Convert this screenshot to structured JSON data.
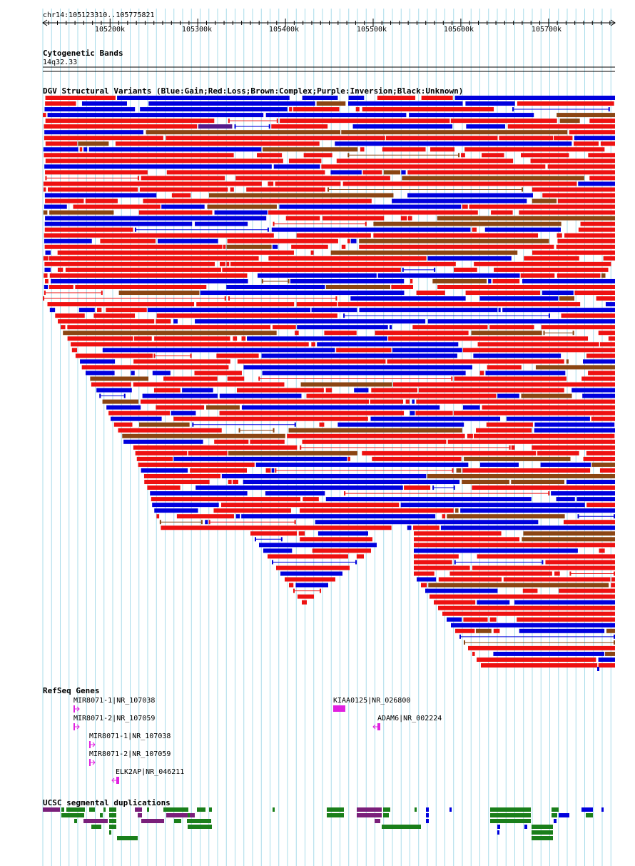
{
  "header": {
    "location": "chr14:105123310..105775821"
  },
  "ruler": {
    "start": 105123310,
    "end": 105775821,
    "ticks": [
      "105200k",
      "105300k",
      "105400k",
      "105500k",
      "105600k",
      "105700k"
    ]
  },
  "cytobands": {
    "title": "Cytogenetic Bands",
    "band": "14q32.33"
  },
  "dgv": {
    "title": "DGV Structural Variants (Blue:Gain;Red:Loss;Brown:Complex;Purple:Inversion;Black:Unknown)",
    "colors": {
      "gain": "#0000dd",
      "loss": "#ee1111",
      "complex": "#8b4513",
      "inversion": "#551a8b",
      "unknown": "#000000"
    }
  },
  "refseq": {
    "title": "RefSeq Genes",
    "color": "#e020e0",
    "genes": [
      {
        "label": "MIR8071-1|NR_107038",
        "strand": "+"
      },
      {
        "label": "MIR8071-2|NR_107059",
        "strand": "+"
      },
      {
        "label": "MIR8071-1|NR_107038",
        "strand": "+"
      },
      {
        "label": "MIR8071-2|NR_107059",
        "strand": "+"
      },
      {
        "label": "ELK2AP|NR_046211",
        "strand": "-"
      },
      {
        "label": "KIAA0125|NR_026800",
        "strand": "+"
      },
      {
        "label": "ADAM6|NR_002224",
        "strand": "-"
      }
    ]
  },
  "segdups": {
    "title": "UCSC segmental duplications",
    "colors": {
      "green": "#1a7f1a",
      "purple": "#7a1f7a",
      "blue": "#0000dd"
    }
  }
}
